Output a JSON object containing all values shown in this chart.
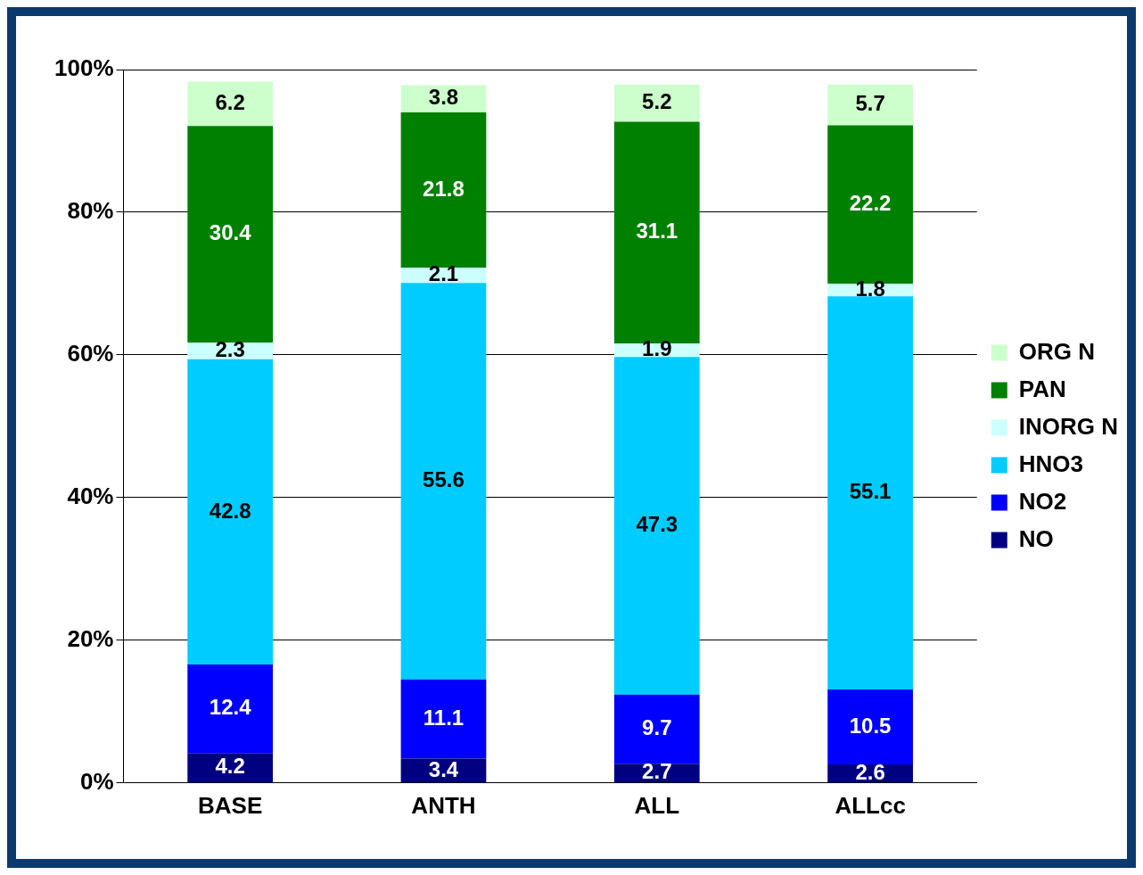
{
  "chart_data": {
    "type": "bar",
    "stacked": true,
    "categories": [
      "BASE",
      "ANTH",
      "ALL",
      "ALLcc"
    ],
    "series": [
      {
        "name": "NO",
        "color": "#000080",
        "values": [
          4.2,
          3.4,
          2.7,
          2.6
        ]
      },
      {
        "name": "NO2",
        "color": "#0000ff",
        "values": [
          12.4,
          11.1,
          9.7,
          10.5
        ]
      },
      {
        "name": "HNO3",
        "color": "#00ccff",
        "values": [
          42.8,
          55.6,
          47.3,
          55.1
        ]
      },
      {
        "name": "INORG N",
        "color": "#ccffff",
        "values": [
          2.3,
          2.1,
          1.9,
          1.8
        ]
      },
      {
        "name": "PAN",
        "color": "#008000",
        "values": [
          30.4,
          21.8,
          31.1,
          22.2
        ]
      },
      {
        "name": "ORG N",
        "color": "#ccffcc",
        "values": [
          6.2,
          3.8,
          5.2,
          5.7
        ]
      }
    ],
    "ylim": [
      0,
      100
    ],
    "yticks": [
      {
        "value": 0,
        "label": "0%"
      },
      {
        "value": 20,
        "label": "20%"
      },
      {
        "value": 40,
        "label": "40%"
      },
      {
        "value": 60,
        "label": "60%"
      },
      {
        "value": 80,
        "label": "80%"
      },
      {
        "value": 100,
        "label": "100%"
      }
    ],
    "grid": "y",
    "legend": "right",
    "data_labels": true
  }
}
